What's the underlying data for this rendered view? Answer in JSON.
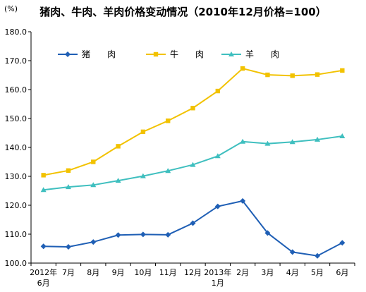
{
  "chart_data": {
    "type": "line",
    "title": "猪肉、牛肉、羊肉价格变动情况（2010年12月价格=100）",
    "ylabel": "(%)",
    "xlabel": "",
    "ylim": [
      100,
      180
    ],
    "yticks": [
      "100.0",
      "110.0",
      "120.0",
      "130.0",
      "140.0",
      "150.0",
      "160.0",
      "170.0",
      "180.0"
    ],
    "grid": false,
    "legend_position": "top",
    "categories": [
      {
        "line1": "2012年",
        "line2": "6月"
      },
      {
        "line1": "7月",
        "line2": ""
      },
      {
        "line1": "8月",
        "line2": ""
      },
      {
        "line1": "9月",
        "line2": ""
      },
      {
        "line1": "10月",
        "line2": ""
      },
      {
        "line1": "11月",
        "line2": ""
      },
      {
        "line1": "12月",
        "line2": ""
      },
      {
        "line1": "2013年",
        "line2": "1月"
      },
      {
        "line1": "2月",
        "line2": ""
      },
      {
        "line1": "3月",
        "line2": ""
      },
      {
        "line1": "4月",
        "line2": ""
      },
      {
        "line1": "5月",
        "line2": ""
      },
      {
        "line1": "6月",
        "line2": ""
      }
    ],
    "series": [
      {
        "name": "猪　　肉",
        "color": "#1f5fb5",
        "marker": "diamond",
        "values": [
          105.8,
          105.6,
          107.3,
          109.7,
          109.9,
          109.8,
          113.8,
          119.6,
          121.5,
          110.4,
          103.8,
          102.5,
          107.0
        ]
      },
      {
        "name": "牛　　肉",
        "color": "#f2c200",
        "marker": "square",
        "values": [
          130.4,
          132.0,
          135.0,
          140.4,
          145.4,
          149.2,
          153.6,
          159.5,
          167.3,
          165.1,
          164.8,
          165.2,
          166.6
        ]
      },
      {
        "name": "羊　　肉",
        "color": "#3fbfbf",
        "marker": "triangle",
        "values": [
          125.3,
          126.3,
          127.0,
          128.5,
          130.1,
          131.9,
          134.0,
          137.0,
          142.0,
          141.3,
          141.9,
          142.7,
          143.9
        ]
      }
    ]
  }
}
